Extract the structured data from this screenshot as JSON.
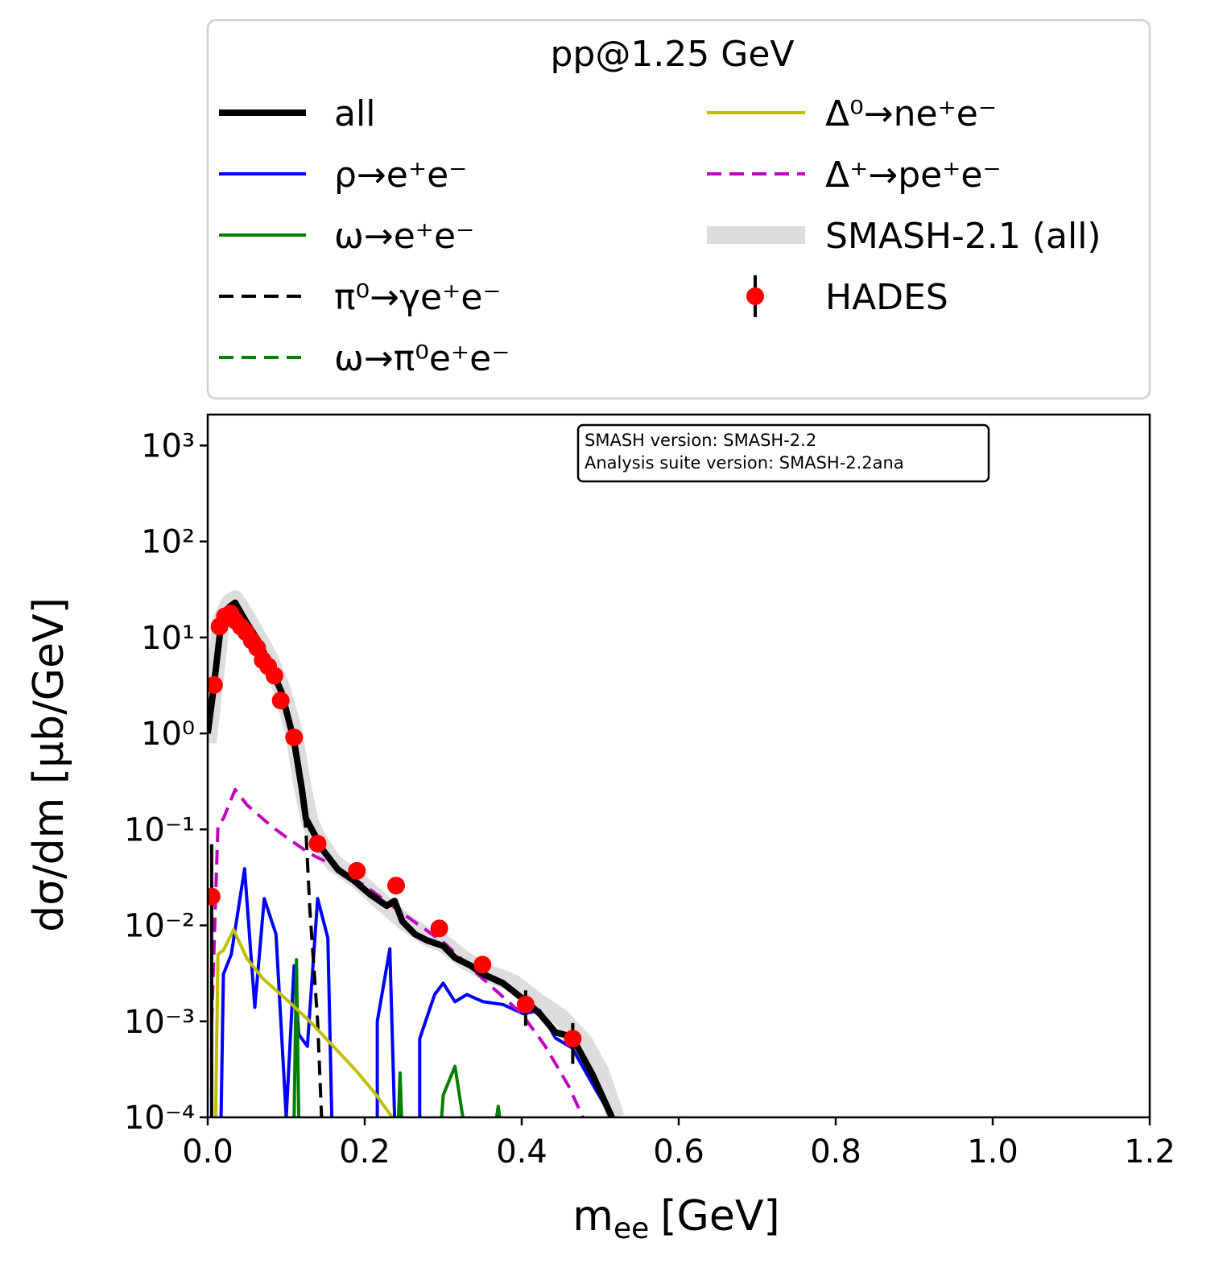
{
  "chart_data": {
    "type": "line",
    "legend_title": "pp@1.25 GeV",
    "xlabel": {
      "symbol": "m",
      "subscript": "ee",
      "unit": "[GeV]"
    },
    "ylabel": "dσ/dm [μb/GeV]",
    "annotation": [
      "SMASH version: SMASH-2.2",
      "Analysis suite version: SMASH-2.2ana"
    ],
    "xlim": [
      0,
      1.2
    ],
    "ylim": [
      0.0001,
      2100
    ],
    "ylog": true,
    "xticks": [
      {
        "value": 0,
        "label": "0.0"
      },
      0.2,
      0.4,
      0.6,
      0.8,
      {
        "value": 1,
        "label": "1.0"
      },
      1.2
    ],
    "yticks": [
      {
        "value": 0.0001,
        "label": "10⁻⁴"
      },
      {
        "value": 0.001,
        "label": "10⁻³"
      },
      {
        "value": 0.01,
        "label": "10⁻²"
      },
      {
        "value": 0.1,
        "label": "10⁻¹"
      },
      {
        "value": 1,
        "label": "10⁰"
      },
      {
        "value": 10,
        "label": "10¹"
      },
      {
        "value": 100,
        "label": "10²"
      },
      {
        "value": 1000,
        "label": "10³"
      }
    ],
    "series": [
      {
        "name": "all",
        "color": "#000000",
        "linestyle": "solid",
        "width": 8,
        "x": [
          0.0,
          0.008,
          0.017,
          0.028,
          0.035,
          0.048,
          0.064,
          0.079,
          0.094,
          0.11,
          0.12,
          0.125,
          0.135,
          0.146,
          0.166,
          0.187,
          0.207,
          0.228,
          0.238,
          0.248,
          0.264,
          0.279,
          0.3,
          0.315,
          0.335,
          0.351,
          0.376,
          0.402,
          0.423,
          0.443,
          0.464,
          0.49,
          0.515
        ],
        "values": [
          1.0,
          3.2,
          14,
          21,
          23,
          15,
          9.3,
          5.2,
          2.7,
          0.83,
          0.26,
          0.13,
          0.092,
          0.062,
          0.038,
          0.029,
          0.021,
          0.016,
          0.018,
          0.011,
          0.0081,
          0.007,
          0.0061,
          0.0046,
          0.0038,
          0.0031,
          0.0025,
          0.0017,
          0.0012,
          0.00077,
          0.00069,
          0.00028,
          0.0001
        ]
      },
      {
        "name": "ρ→e⁺e⁻",
        "color": "#0000ff",
        "linestyle": "solid",
        "width": 4,
        "x": [
          0.017,
          0.02,
          0.03,
          0.047,
          0.06,
          0.072,
          0.087,
          0.1,
          0.11,
          0.116,
          0.127,
          0.14,
          0.153,
          0.158,
          0.19,
          0.216,
          0.216,
          0.232,
          0.238,
          0.25,
          0.27,
          0.27,
          0.289,
          0.3,
          0.315,
          0.33,
          0.351,
          0.376,
          0.402,
          0.423,
          0.443,
          0.464,
          0.495,
          0.515
        ],
        "values": [
          0.0001,
          0.0031,
          0.005,
          0.039,
          0.0014,
          0.019,
          0.0081,
          0.0001,
          0.0038,
          0.00073,
          0.00055,
          0.019,
          0.0074,
          0.0001,
          null,
          0.0001,
          0.001,
          0.0057,
          0.0001,
          null,
          0.0001,
          0.00066,
          0.0019,
          0.0025,
          0.0016,
          0.0019,
          0.0016,
          0.0015,
          0.0012,
          0.0013,
          0.00067,
          0.00053,
          0.00019,
          0.0001
        ]
      },
      {
        "name": "ω→e⁺e⁻",
        "color": "#008000",
        "linestyle": "solid",
        "width": 4,
        "x": [
          0.11,
          0.113,
          0.116,
          0.2,
          0.243,
          0.245,
          0.247,
          0.28,
          0.298,
          0.3,
          0.315,
          0.325,
          0.35,
          0.368,
          0.37,
          0.372
        ],
        "values": [
          0.0001,
          0.0044,
          0.0001,
          null,
          0.0001,
          0.00029,
          0.0001,
          null,
          0.0001,
          0.00017,
          0.00034,
          0.0001,
          null,
          0.0001,
          0.00013,
          0.0001
        ]
      },
      {
        "name": "π⁰→γe⁺e⁻",
        "color": "#000000",
        "linestyle": "dashed",
        "width": 4,
        "x": [
          0.0,
          0.008,
          0.017,
          0.028,
          0.035,
          0.048,
          0.064,
          0.079,
          0.094,
          0.11,
          0.12,
          0.125,
          0.13,
          0.14,
          0.145
        ],
        "values": [
          1.0,
          3.2,
          14,
          21,
          23,
          15,
          9.3,
          5.2,
          2.7,
          0.8,
          0.25,
          0.1,
          0.015,
          0.001,
          0.0001
        ]
      },
      {
        "name": "ω→π⁰e⁺e⁻",
        "color": "#008000",
        "linestyle": "dashed",
        "width": 4,
        "x": [],
        "values": []
      },
      {
        "name": "Δ⁰→ne⁺e⁻",
        "color": "#bfbf00",
        "linestyle": "solid",
        "width": 4,
        "x": [
          0.01,
          0.013,
          0.02,
          0.033,
          0.05,
          0.07,
          0.1,
          0.13,
          0.16,
          0.19,
          0.215,
          0.235
        ],
        "values": [
          0.0001,
          0.005,
          0.0055,
          0.009,
          0.0045,
          0.0028,
          0.0017,
          0.001,
          0.00055,
          0.0003,
          0.00017,
          0.0001
        ]
      },
      {
        "name": "Δ⁺→pe⁺e⁻",
        "color": "#bf00bf",
        "linestyle": "dashed",
        "width": 4,
        "x": [
          0.005,
          0.013,
          0.02,
          0.035,
          0.05,
          0.08,
          0.1,
          0.13,
          0.16,
          0.2,
          0.25,
          0.3,
          0.35,
          0.4,
          0.43,
          0.46,
          0.478
        ],
        "values": [
          0.00098,
          0.11,
          0.13,
          0.26,
          0.18,
          0.11,
          0.083,
          0.056,
          0.042,
          0.026,
          0.013,
          0.0067,
          0.0028,
          0.0012,
          0.00055,
          0.00021,
          0.0001
        ]
      },
      {
        "name": "SMASH-2.1 (all)",
        "color": "#dddddd",
        "linestyle": "band",
        "width": 22,
        "x": [
          0.0,
          0.008,
          0.017,
          0.028,
          0.035,
          0.048,
          0.064,
          0.079,
          0.094,
          0.11,
          0.12,
          0.13,
          0.14,
          0.16,
          0.19,
          0.22,
          0.25,
          0.28,
          0.3,
          0.33,
          0.36,
          0.39,
          0.42,
          0.45,
          0.48,
          0.5,
          0.52
        ],
        "values": [
          0.8,
          3.0,
          15,
          23,
          25,
          17,
          10,
          6,
          3,
          1.0,
          0.3,
          0.12,
          0.08,
          0.045,
          0.03,
          0.018,
          0.011,
          0.0075,
          0.0065,
          0.0042,
          0.0031,
          0.0025,
          0.0016,
          0.0011,
          0.0006,
          0.0003,
          0.0001
        ]
      },
      {
        "name": "HADES",
        "color": "#ff0000",
        "marker": "o",
        "x": [
          0.005,
          0.008,
          0.015,
          0.022,
          0.029,
          0.035,
          0.042,
          0.049,
          0.056,
          0.063,
          0.07,
          0.077,
          0.085,
          0.093,
          0.11,
          0.14,
          0.19,
          0.24,
          0.295,
          0.35,
          0.405,
          0.465
        ],
        "values": [
          0.02,
          3.2,
          13,
          16.6,
          17.8,
          15,
          13,
          11.3,
          9.3,
          7.8,
          5.8,
          5.0,
          4.0,
          2.2,
          0.91,
          0.071,
          0.037,
          0.026,
          0.0093,
          0.0039,
          0.0015,
          0.00066
        ],
        "yerr": [
          0.05,
          0.3,
          1,
          1,
          1,
          1,
          1,
          0.8,
          0.6,
          0.5,
          0.4,
          0.3,
          0.3,
          0.2,
          0.08,
          0.007,
          0.004,
          0.003,
          0.001,
          0.0009,
          0.0006,
          0.0003
        ]
      }
    ]
  }
}
